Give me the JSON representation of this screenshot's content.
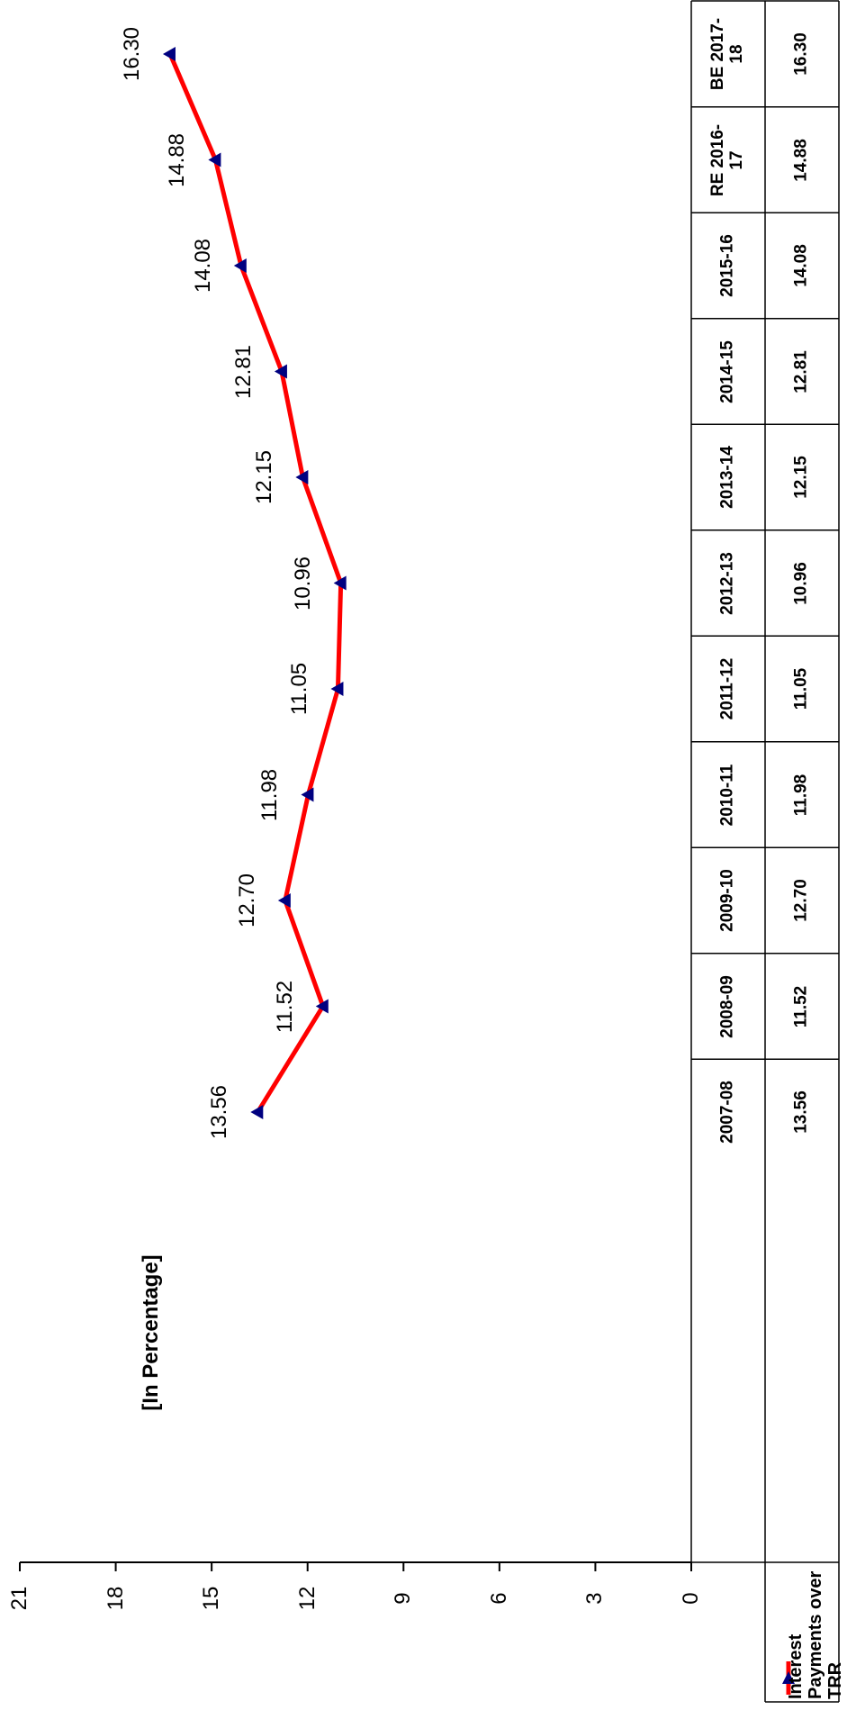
{
  "chart_data": {
    "type": "line",
    "ylabel": "[In Percentage]",
    "categories": [
      "2007-08",
      "2008-09",
      "2009-10",
      "2010-11",
      "2011-12",
      "2012-13",
      "2013-14",
      "2014-15",
      "2015-16",
      "RE 2016-17",
      "BE 2017-18"
    ],
    "series": [
      {
        "name": "Interest Payments over TRR",
        "color": "#ff0000",
        "marker_color": "#000080",
        "values": [
          13.56,
          11.52,
          12.7,
          11.98,
          11.05,
          10.96,
          12.15,
          12.81,
          14.08,
          14.88,
          16.3
        ],
        "value_labels": [
          "13.56",
          "11.52",
          "12.70",
          "11.98",
          "11.05",
          "10.96",
          "12.15",
          "12.81",
          "14.08",
          "14.88",
          "16.30"
        ]
      }
    ],
    "ylim": [
      0,
      21
    ],
    "yticks": [
      0,
      3,
      6,
      9,
      12,
      15,
      18,
      21
    ],
    "grid": false
  }
}
